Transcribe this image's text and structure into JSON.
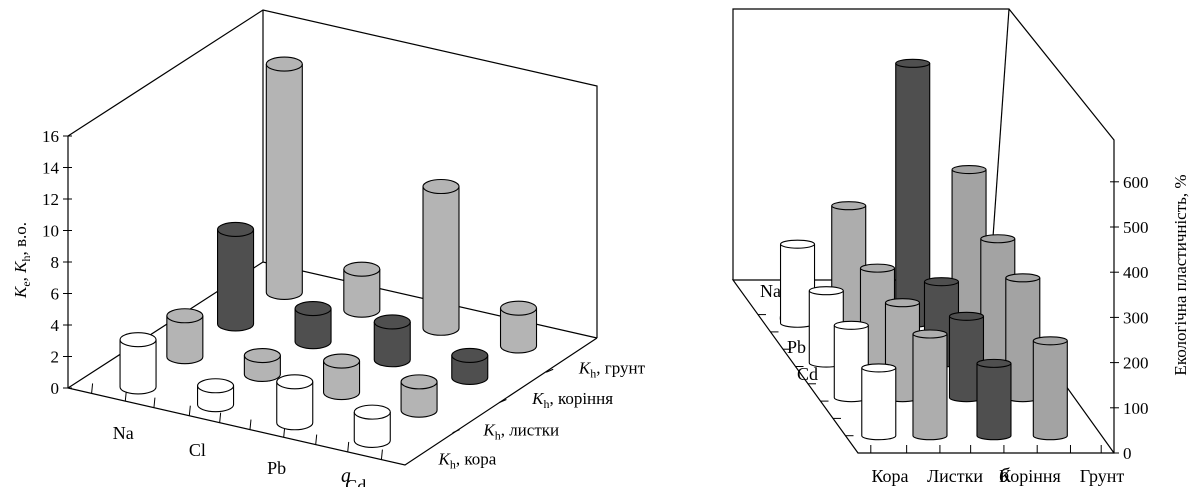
{
  "chart_data": [
    {
      "type": "bar",
      "subtitle": "а",
      "ylabel_parts": [
        "K",
        "e",
        ", K",
        "h",
        ", в.о."
      ],
      "ylim": [
        0,
        16
      ],
      "yticks": [
        "0",
        "2",
        "4",
        "6",
        "8",
        "10",
        "12",
        "14",
        "16"
      ],
      "categories": [
        "Na",
        "Cl",
        "Pb",
        "Cd"
      ],
      "series": [
        {
          "label_sym": "K",
          "label_sub": "h",
          "label_text": ", кора",
          "values": [
            3.0,
            1.2,
            2.6,
            1.8
          ]
        },
        {
          "label_sym": "K",
          "label_sub": "h",
          "label_text": ", листки",
          "values": [
            2.6,
            1.2,
            2.0,
            1.8
          ]
        },
        {
          "label_sym": "K",
          "label_sub": "h",
          "label_text": ", коріння",
          "values": [
            6.0,
            2.1,
            2.4,
            1.4
          ]
        },
        {
          "label_sym": "K",
          "label_sub": "h",
          "label_text": ", грунт",
          "values": [
            14.5,
            2.6,
            9.0,
            2.4
          ]
        }
      ],
      "colors": [
        "#ffffff",
        "#b4b4b4",
        "#4f4f4f",
        "#b4b4b4"
      ]
    },
    {
      "type": "bar",
      "subtitle": "б",
      "ylabel": "Екологічна пластичність, %",
      "ylim": [
        0,
        600
      ],
      "yticks": [
        "0",
        "100",
        "200",
        "300",
        "400",
        "500",
        "600"
      ],
      "categories": [
        "Кора",
        "Листки",
        "Коріння",
        "Грунт"
      ],
      "depth_labels": [
        "Na",
        "Cl",
        "Pb",
        "Cd"
      ],
      "series": [
        {
          "name": "Na",
          "values": [
            175,
            260,
            575,
            340
          ]
        },
        {
          "name": "Cl",
          "values": [
            160,
            210,
            180,
            275
          ]
        },
        {
          "name": "Pb",
          "values": [
            160,
            210,
            180,
            265
          ]
        },
        {
          "name": "Cd",
          "values": [
            150,
            225,
            160,
            210
          ]
        }
      ],
      "colors": [
        "#ffffff",
        "#adadad",
        "#4f4f4f",
        "#a3a3a3"
      ]
    }
  ]
}
